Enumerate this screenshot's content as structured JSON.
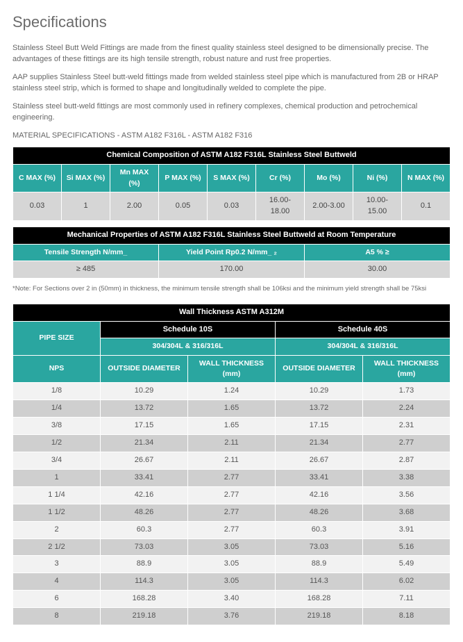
{
  "title": "Specifications",
  "paragraphs": [
    "Stainless Steel Butt Weld Fittings are made from the finest quality stainless steel designed to be dimensionally precise. The advantages of these fittings are its high tensile strength, robust nature and rust free properties.",
    "AAP supplies Stainless Steel butt-weld fittings made from welded stainless steel pipe which is manufactured from 2B or HRAP stainless steel strip, which is formed to shape and longitudinally welded to complete the pipe.",
    "Stainless steel butt-weld fittings are most commonly used in refinery complexes, chemical production and petrochemical engineering."
  ],
  "material_spec_line": "MATERIAL SPECIFICATIONS - ASTM A182 F316L - ASTM A182 F316",
  "chem": {
    "title": "Chemical Composition of ASTM A182 F316L Stainless Steel Buttweld",
    "headers": [
      "C MAX (%)",
      "Si MAX (%)",
      "Mn MAX (%)",
      "P MAX (%)",
      "S MAX (%)",
      "Cr (%)",
      "Mo (%)",
      "Ni (%)",
      "N MAX (%)"
    ],
    "row": [
      "0.03",
      "1",
      "2.00",
      "0.05",
      "0.03",
      "16.00-18.00",
      "2.00-3.00",
      "10.00-15.00",
      "0.1"
    ]
  },
  "mech": {
    "title": "Mechanical Properties of  ASTM A182 F316L Stainless Steel Buttweld at Room Temperature",
    "headers": [
      "Tensile Strength N/mm_",
      "Yield Point Rp0.2  N/mm_ ₂",
      "A5 % ≥"
    ],
    "row": [
      "≥ 485",
      "170.00",
      "30.00"
    ]
  },
  "note": "*Note: For Sections over 2 in (50mm) in thickness, the minimum tensile strength shall be 106ksi and the minimum yield strength shall be 75ksi",
  "wt": {
    "title": "Wall Thickness ASTM A312M",
    "pipe_size": "PIPE SIZE",
    "sched10": "Schedule 10S",
    "sched40": "Schedule 40S",
    "grade": "304/304L & 316/316L",
    "cols": [
      "NPS",
      "OUTSIDE DIAMETER",
      "WALL THICKNESS (mm)",
      "OUTSIDE DIAMETER",
      "WALL THICKNESS (mm)"
    ],
    "rows": [
      [
        "1/8",
        "10.29",
        "1.24",
        "10.29",
        "1.73"
      ],
      [
        "1/4",
        "13.72",
        "1.65",
        "13.72",
        "2.24"
      ],
      [
        "3/8",
        "17.15",
        "1.65",
        "17.15",
        "2.31"
      ],
      [
        "1/2",
        "21.34",
        "2.11",
        "21.34",
        "2.77"
      ],
      [
        "3/4",
        "26.67",
        "2.11",
        "26.67",
        "2.87"
      ],
      [
        "1",
        "33.41",
        "2.77",
        "33.41",
        "3.38"
      ],
      [
        "1 1/4",
        "42.16",
        "2.77",
        "42.16",
        "3.56"
      ],
      [
        "1 1/2",
        "48.26",
        "2.77",
        "48.26",
        "3.68"
      ],
      [
        "2",
        "60.3",
        "2.77",
        "60.3",
        "3.91"
      ],
      [
        "2 1/2",
        "73.03",
        "3.05",
        "73.03",
        "5.16"
      ],
      [
        "3",
        "88.9",
        "3.05",
        "88.9",
        "5.49"
      ],
      [
        "4",
        "114.3",
        "3.05",
        "114.3",
        "6.02"
      ],
      [
        "6",
        "168.28",
        "3.40",
        "168.28",
        "7.11"
      ],
      [
        "8",
        "219.18",
        "3.76",
        "219.18",
        "8.18"
      ]
    ]
  },
  "colors": {
    "teal": "#2aa6a0",
    "black": "#000",
    "grey": "#d6d6d6",
    "stripe_odd": "#f2f2f2",
    "stripe_even": "#cfcfcf",
    "text": "#555"
  }
}
